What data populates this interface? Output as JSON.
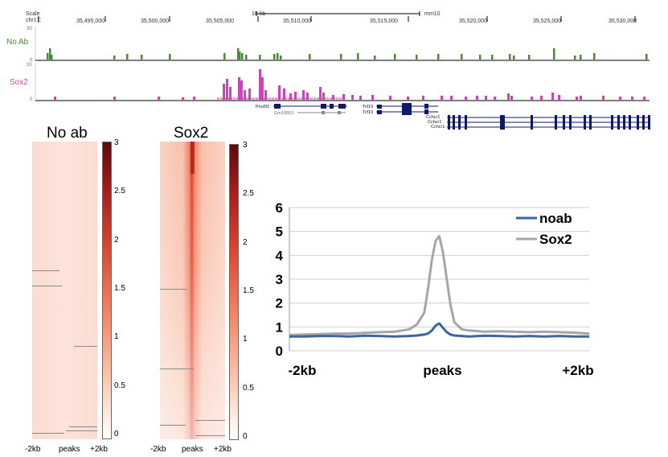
{
  "browser": {
    "scale_label": "Scale",
    "chrom_label": "chr17:",
    "scale_bar_label": "10 kb",
    "assembly_label": "mm10",
    "coordinates": [
      "35,495,000",
      "35,500,000",
      "35,505,000",
      "35,510,000",
      "35,515,000",
      "35,520,000",
      "35,525,000",
      "35,530,000"
    ],
    "tracks": [
      {
        "name": "No Ab",
        "max_label": "30",
        "min_label": "0",
        "color": "#4a8a35"
      },
      {
        "name": "Sox2",
        "max_label": "30",
        "min_label": "0",
        "color": "#d43fbf"
      }
    ],
    "genes": [
      {
        "label": "Pou5f1"
      },
      {
        "label": "Gm19553"
      },
      {
        "label": "Tcf19"
      },
      {
        "label": "Tcf19"
      },
      {
        "label": "Cchcr1"
      },
      {
        "label": "Cchcr1"
      },
      {
        "label": "Cchcr1"
      }
    ]
  },
  "heatmaps": [
    {
      "title": "No ab",
      "scale_ticks": [
        "3",
        "2.5",
        "2",
        "1.5",
        "1",
        "0.5",
        "0"
      ],
      "x_labels": [
        "-2kb",
        "peaks",
        "+2kb"
      ]
    },
    {
      "title": "Sox2",
      "scale_ticks": [
        "3",
        "2.5",
        "2",
        "1.5",
        "1",
        "0.5",
        "0"
      ],
      "x_labels": [
        "-2kb",
        "peaks",
        "+2kb"
      ]
    }
  ],
  "chart_data": {
    "type": "line",
    "title": "",
    "xlabel": "",
    "ylabel": "",
    "x_tick_labels": [
      "-2kb",
      "peaks",
      "+2kb"
    ],
    "ylim": [
      0,
      6
    ],
    "y_ticks": [
      "0",
      "1",
      "2",
      "3",
      "4",
      "5",
      "6"
    ],
    "x": [
      -2000,
      -1800,
      -1600,
      -1400,
      -1200,
      -1000,
      -800,
      -600,
      -400,
      -300,
      -200,
      -150,
      -100,
      -50,
      0,
      50,
      100,
      150,
      200,
      300,
      400,
      600,
      800,
      1000,
      1200,
      1400,
      1600,
      1800,
      2000
    ],
    "series": [
      {
        "name": "noab",
        "color": "#3a66a8",
        "values": [
          0.6,
          0.6,
          0.62,
          0.62,
          0.6,
          0.63,
          0.62,
          0.6,
          0.62,
          0.64,
          0.68,
          0.72,
          0.85,
          1.05,
          1.15,
          0.95,
          0.78,
          0.68,
          0.64,
          0.62,
          0.6,
          0.63,
          0.62,
          0.6,
          0.62,
          0.6,
          0.62,
          0.6,
          0.6
        ]
      },
      {
        "name": "Sox2",
        "color": "#a6a6a6",
        "values": [
          0.66,
          0.68,
          0.7,
          0.72,
          0.72,
          0.75,
          0.78,
          0.8,
          0.9,
          1.1,
          1.6,
          2.6,
          3.8,
          4.6,
          4.8,
          4.1,
          3.0,
          1.9,
          1.2,
          0.9,
          0.85,
          0.8,
          0.82,
          0.8,
          0.78,
          0.8,
          0.78,
          0.76,
          0.72
        ]
      }
    ],
    "legend_position": "top-right"
  }
}
